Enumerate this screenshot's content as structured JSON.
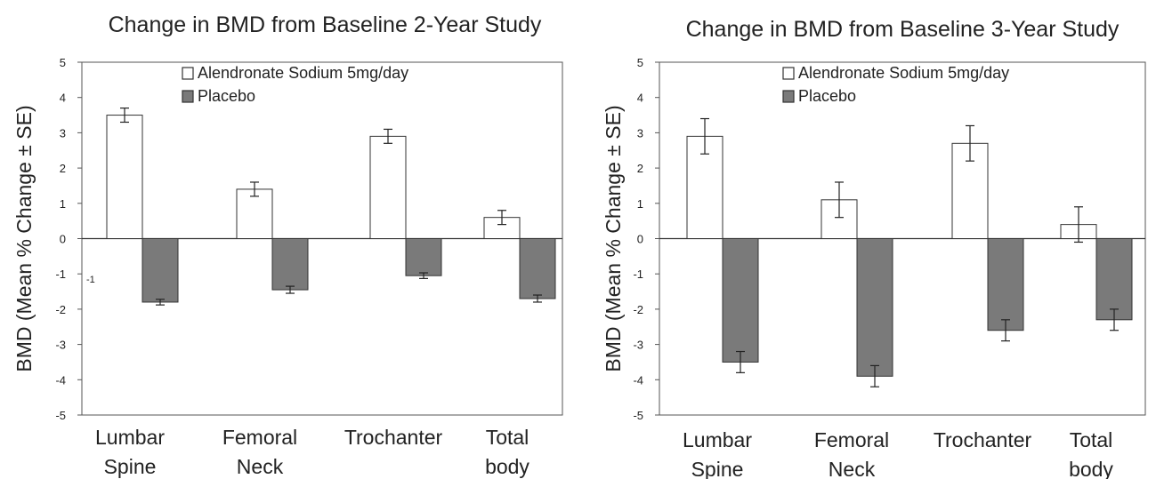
{
  "chart_data": [
    {
      "type": "bar",
      "title": "Change in BMD from Baseline 2-Year Study",
      "ylabel": "BMD (Mean % Change ± SE)",
      "ylim": [
        -5,
        5
      ],
      "yticks": [
        "5",
        "4",
        "3",
        "2",
        "1",
        "0",
        "-1",
        "-2",
        "-3",
        "-4",
        "-5"
      ],
      "categories": [
        [
          "Lumbar",
          "Spine"
        ],
        [
          "Femoral",
          "Neck"
        ],
        [
          "Trochanter"
        ],
        [
          "Total",
          "body"
        ]
      ],
      "annotation": "-1",
      "series": [
        {
          "name": "Alendronate Sodium 5mg/day",
          "values": [
            3.5,
            1.4,
            2.9,
            0.6
          ],
          "se": [
            0.2,
            0.2,
            0.2,
            0.2
          ],
          "color": "#ffffff"
        },
        {
          "name": "Placebo",
          "values": [
            -1.8,
            -1.45,
            -1.05,
            -1.7
          ],
          "se": [
            0.08,
            0.1,
            0.08,
            0.1
          ],
          "color": "#7a7a7a"
        }
      ],
      "legend_position": "top-center",
      "grid": false
    },
    {
      "type": "bar",
      "title": "Change in BMD from Baseline 3-Year Study",
      "ylabel": "BMD (Mean % Change ± SE)",
      "ylim": [
        -5,
        5
      ],
      "yticks": [
        "5",
        "4",
        "3",
        "2",
        "1",
        "0",
        "-1",
        "-2",
        "-3",
        "-4",
        "-5"
      ],
      "categories": [
        [
          "Lumbar",
          "Spine"
        ],
        [
          "Femoral",
          "Neck"
        ],
        [
          "Trochanter"
        ],
        [
          "Total",
          "body"
        ]
      ],
      "series": [
        {
          "name": "Alendronate Sodium 5mg/day",
          "values": [
            2.9,
            1.1,
            2.7,
            0.4
          ],
          "se": [
            0.5,
            0.5,
            0.5,
            0.5
          ],
          "color": "#ffffff"
        },
        {
          "name": "Placebo",
          "values": [
            -3.5,
            -3.9,
            -2.6,
            -2.3
          ],
          "se": [
            0.3,
            0.3,
            0.3,
            0.3
          ],
          "color": "#7a7a7a"
        }
      ],
      "legend_position": "top-center",
      "grid": false
    }
  ]
}
